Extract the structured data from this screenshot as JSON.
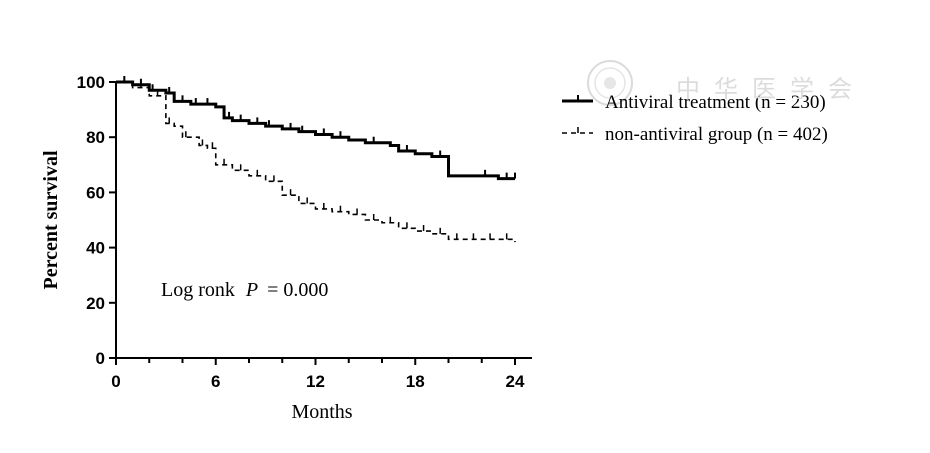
{
  "chart_data": {
    "type": "line",
    "subtype": "kaplan-meier",
    "title": "",
    "xlabel": "Months",
    "ylabel": "Percent survival",
    "xlim": [
      0,
      24
    ],
    "ylim": [
      0,
      100
    ],
    "xticks": [
      0,
      6,
      12,
      18,
      24
    ],
    "yticks": [
      0,
      20,
      40,
      60,
      80,
      100
    ],
    "grid": false,
    "legend_position": "top-right",
    "annotation": {
      "prefix": "Log ronk",
      "p_symbol": "P",
      "p_text": "= 0.000"
    },
    "series": [
      {
        "name": "Antiviral treatment",
        "label_text": "Antiviral treatment (n = 230)",
        "style": "solid",
        "x": [
          0,
          1,
          2,
          3,
          3.5,
          4.5,
          6,
          6.5,
          7,
          8,
          9,
          10,
          11,
          12,
          13,
          14,
          15,
          16,
          16.5,
          17,
          18,
          19,
          20,
          21,
          22,
          23,
          24
        ],
        "y": [
          100,
          99,
          97,
          96,
          93,
          92,
          91,
          87,
          86,
          85,
          84,
          83,
          82,
          81,
          80,
          79,
          78,
          78,
          77,
          75,
          74,
          73,
          66,
          66,
          66,
          65,
          65
        ],
        "censor_x": [
          0.5,
          1.5,
          2.2,
          3.2,
          4,
          4.8,
          5.5,
          6.8,
          7.5,
          8.5,
          9.2,
          10.5,
          11.2,
          12.5,
          13.5,
          15.5,
          17.5,
          19.5,
          22.2,
          23.5,
          24
        ]
      },
      {
        "name": "non-antiviral group",
        "label_text": "non-antiviral group (n = 402)",
        "style": "dashed",
        "x": [
          0,
          1,
          2,
          3,
          3.5,
          4,
          5,
          5.5,
          6,
          7,
          8,
          9,
          10,
          11,
          12,
          13,
          14,
          15,
          16,
          17,
          18,
          19,
          20,
          22,
          24
        ],
        "y": [
          100,
          98,
          95,
          85,
          84,
          80,
          77,
          76,
          70,
          68,
          66,
          64,
          59,
          56,
          54,
          53,
          52,
          50,
          49,
          47,
          46,
          45,
          43,
          43,
          42
        ],
        "censor_x": [
          0.5,
          1.5,
          2.5,
          3.2,
          4.2,
          5.2,
          5.8,
          6.5,
          7.5,
          8.5,
          9.5,
          10.5,
          11.5,
          12.5,
          13.5,
          14.5,
          15.5,
          16.5,
          17.5,
          18.5,
          19.5,
          20.5,
          21.5,
          22.5,
          23.5
        ]
      }
    ]
  },
  "watermark": {
    "text": "中华医学会",
    "color": "#dcdcdc"
  }
}
